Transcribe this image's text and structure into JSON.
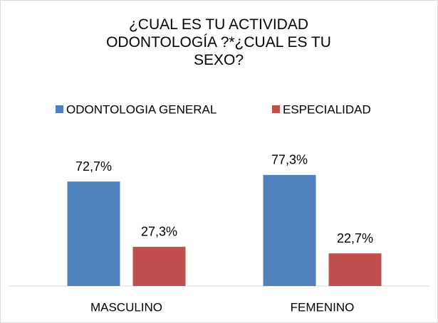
{
  "chart_data": {
    "type": "bar",
    "title": "¿CUAL ES TU ACTIVIDAD ODONTOLOGÍA ?*¿CUAL ES TU SEXO?",
    "categories": [
      "MASCULINO",
      "FEMENINO"
    ],
    "series": [
      {
        "name": "ODONTOLOGIA GENERAL",
        "color": "#4f81bd",
        "values": [
          72.7,
          77.3
        ],
        "value_labels": [
          "72,7%",
          "77,3%"
        ]
      },
      {
        "name": "ESPECIALIDAD",
        "color": "#c0504d",
        "values": [
          27.3,
          22.7
        ],
        "value_labels": [
          "27,3%",
          "22,7%"
        ]
      }
    ],
    "legend": "top"
  }
}
